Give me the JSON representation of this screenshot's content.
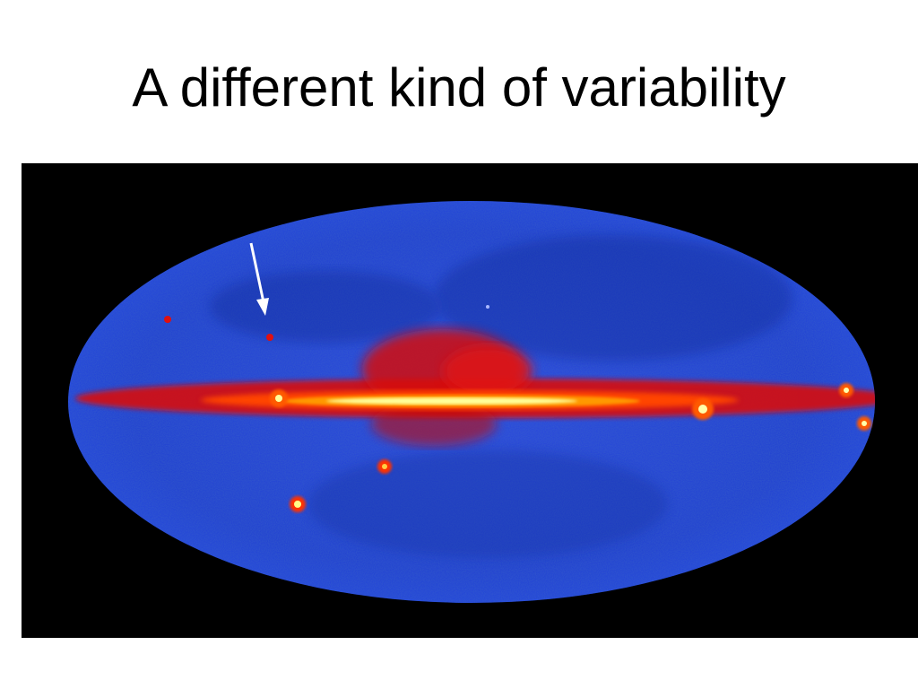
{
  "slide": {
    "title": "A different kind of variability"
  },
  "image": {
    "subject": "all-sky-gamma-ray-map",
    "colors": {
      "background": "#000000",
      "sky": "#1f3fd6",
      "sky_dark": "#1530a8",
      "plane_outer": "#e01010",
      "plane_mid": "#ff6a00",
      "plane_core": "#ffff90",
      "arrow": "#ffffff"
    }
  }
}
